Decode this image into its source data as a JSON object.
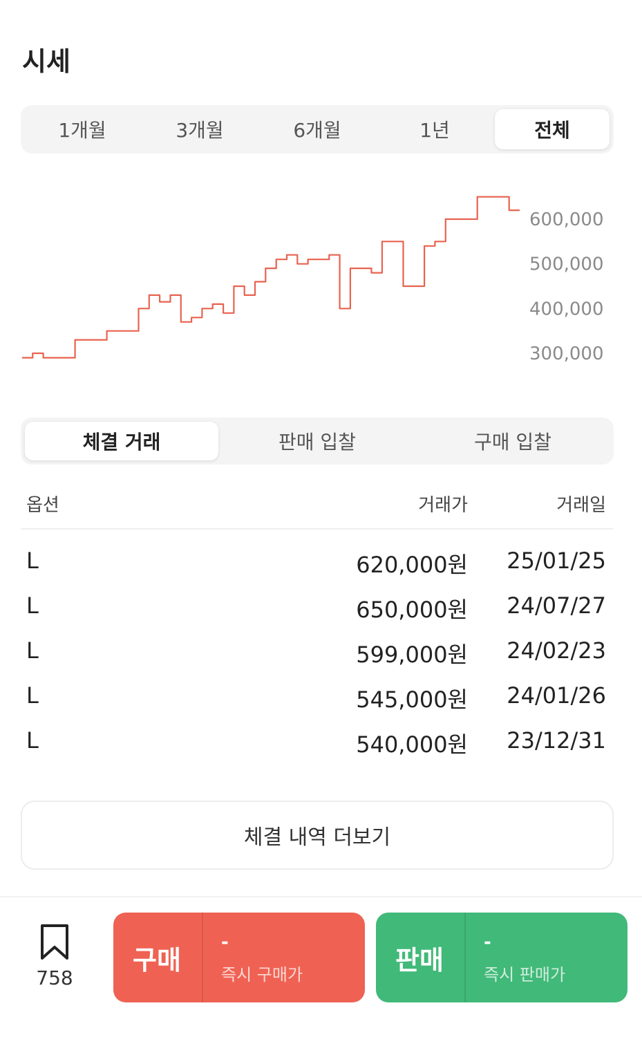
{
  "title": "시세",
  "period_tabs": [
    {
      "label": "1개월",
      "active": false
    },
    {
      "label": "3개월",
      "active": false
    },
    {
      "label": "6개월",
      "active": false
    },
    {
      "label": "1년",
      "active": false
    },
    {
      "label": "전체",
      "active": true
    }
  ],
  "chart_data": {
    "type": "line",
    "color": "#e8624f",
    "y_axis_side": "right",
    "yticks": [
      "600,000",
      "500,000",
      "400,000",
      "300,000"
    ],
    "ytick_values": [
      600000,
      500000,
      400000,
      300000
    ],
    "series": [
      {
        "values": [
          290000,
          300000,
          290000,
          290000,
          290000,
          330000,
          330000,
          330000,
          350000,
          350000,
          350000,
          400000,
          430000,
          415000,
          430000,
          370000,
          380000,
          400000,
          410000,
          390000,
          450000,
          430000,
          460000,
          490000,
          510000,
          520000,
          500000,
          510000,
          510000,
          520000,
          400000,
          490000,
          490000,
          480000,
          550000,
          550000,
          450000,
          450000,
          540000,
          550000,
          600000,
          600000,
          600000,
          650000,
          650000,
          650000,
          620000,
          620000
        ]
      }
    ]
  },
  "trade_tabs": [
    {
      "label": "체결 거래",
      "active": true
    },
    {
      "label": "판매 입찰",
      "active": false
    },
    {
      "label": "구매 입찰",
      "active": false
    }
  ],
  "table": {
    "headers": {
      "option": "옵션",
      "price": "거래가",
      "date": "거래일"
    },
    "rows": [
      {
        "option": "L",
        "price": "620,000원",
        "date": "25/01/25"
      },
      {
        "option": "L",
        "price": "650,000원",
        "date": "24/07/27"
      },
      {
        "option": "L",
        "price": "599,000원",
        "date": "24/02/23"
      },
      {
        "option": "L",
        "price": "545,000원",
        "date": "24/01/26"
      },
      {
        "option": "L",
        "price": "540,000원",
        "date": "23/12/31"
      }
    ]
  },
  "more_button": "체결 내역 더보기",
  "bottom_bar": {
    "bookmark_icon": "bookmark-icon",
    "bookmark_count": "758",
    "buy": {
      "label": "구매",
      "price": "-",
      "sub": "즉시 구매가",
      "color": "#ef6253"
    },
    "sell": {
      "label": "판매",
      "price": "-",
      "sub": "즉시 판매가",
      "color": "#41b979"
    }
  }
}
